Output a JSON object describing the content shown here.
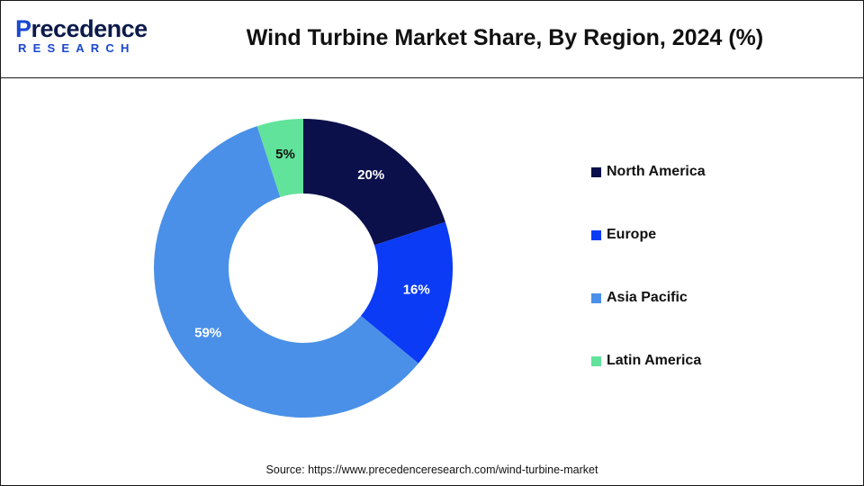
{
  "brand": {
    "logo_top": "recedence",
    "logo_initial": "P",
    "logo_bottom": "RESEARCH"
  },
  "header": {
    "title": "Wind Turbine Market Share, By Region, 2024 (%)"
  },
  "footer": {
    "source": "Source: https://www.precedenceresearch.com/wind-turbine-market"
  },
  "chart_data": {
    "type": "pie",
    "variant": "donut",
    "title": "Wind Turbine Market Share, By Region, 2024 (%)",
    "categories": [
      "North America",
      "Europe",
      "Asia Pacific",
      "Latin America"
    ],
    "values": [
      20,
      16,
      59,
      5
    ],
    "labels": [
      "20%",
      "16%",
      "59%",
      "5%"
    ],
    "colors": [
      "#0b0f4a",
      "#0b3bf5",
      "#4a90e8",
      "#62e39b"
    ],
    "start_angle_deg": 0,
    "direction": "clockwise",
    "legend_position": "right"
  }
}
